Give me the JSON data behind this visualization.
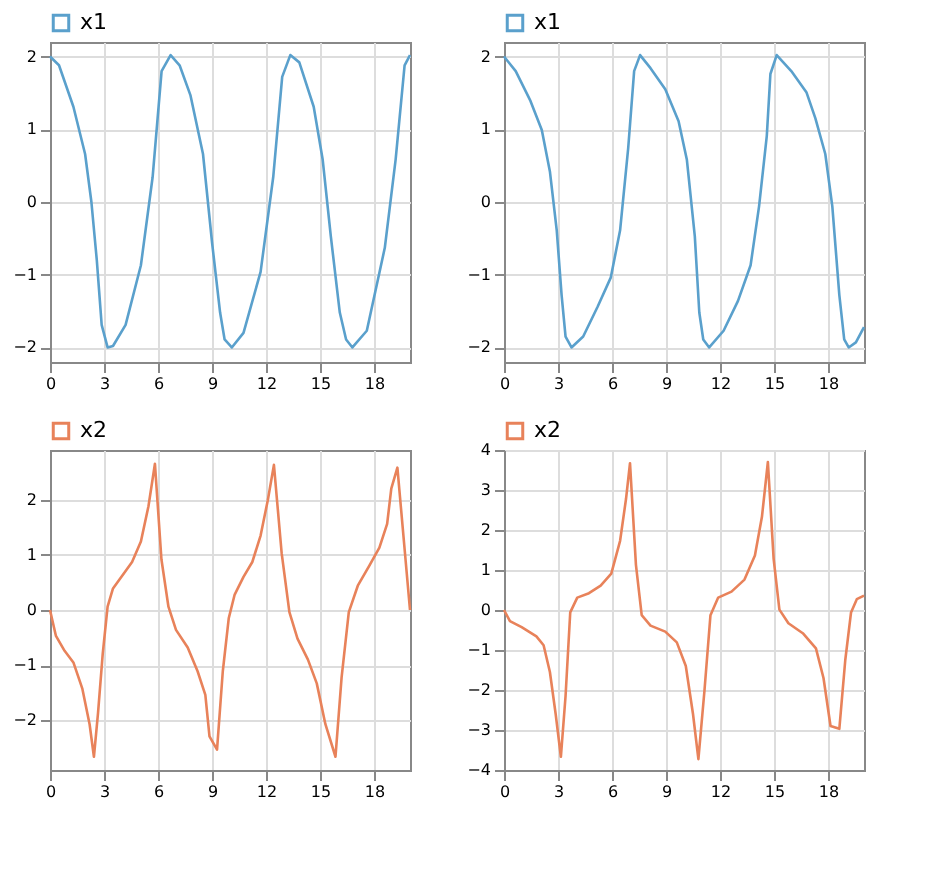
{
  "chart_data": [
    {
      "type": "line",
      "xlim": [
        0,
        20
      ],
      "xticks": [
        0,
        3,
        6,
        9,
        12,
        15,
        18
      ],
      "ylim": [
        -2.2,
        2.2
      ],
      "yticks": [
        -2,
        -1,
        0,
        1,
        2
      ],
      "grid": true,
      "legend": "top left",
      "marker": "none",
      "series": [
        {
          "name": "x1",
          "color": "#5aa0cc",
          "x": [
            0,
            0.5,
            1.3,
            1.95,
            2.3,
            2.6,
            2.87,
            3.2,
            3.5,
            4.2,
            5.05,
            5.7,
            6.2,
            6.7,
            7.2,
            7.8,
            8.5,
            9.0,
            9.45,
            9.7,
            10.1,
            10.75,
            11.7,
            12.4,
            12.9,
            13.35,
            13.85,
            14.65,
            15.15,
            15.6,
            16.1,
            16.45,
            16.8,
            17.6,
            18.6,
            19.2,
            19.7,
            20.0
          ],
          "values": [
            2,
            1.88,
            1.31,
            0.66,
            0,
            -0.8,
            -1.69,
            -2.0,
            -1.98,
            -1.69,
            -0.87,
            0.34,
            1.8,
            2.02,
            1.88,
            1.47,
            0.66,
            -0.55,
            -1.52,
            -1.89,
            -2.0,
            -1.8,
            -0.96,
            0.34,
            1.72,
            2.02,
            1.92,
            1.31,
            0.58,
            -0.47,
            -1.52,
            -1.89,
            -2.0,
            -1.77,
            -0.63,
            0.58,
            1.88,
            2.02
          ]
        }
      ]
    },
    {
      "type": "line",
      "xlim": [
        0,
        20
      ],
      "xticks": [
        0,
        3,
        6,
        9,
        12,
        15,
        18
      ],
      "ylim": [
        -2.2,
        2.2
      ],
      "yticks": [
        -2,
        -1,
        0,
        1,
        2
      ],
      "grid": true,
      "legend": "top left",
      "marker": "none",
      "series": [
        {
          "name": "x1",
          "color": "#5aa0cc",
          "x": [
            0,
            0.65,
            1.47,
            2.1,
            2.55,
            2.93,
            3.2,
            3.42,
            3.75,
            4.4,
            5.2,
            5.93,
            6.45,
            6.9,
            7.23,
            7.56,
            8.14,
            8.96,
            9.7,
            10.16,
            10.6,
            10.85,
            11.07,
            11.4,
            12.2,
            13.0,
            13.7,
            14.17,
            14.6,
            14.8,
            15.15,
            15.96,
            16.8,
            17.3,
            17.85,
            18.24,
            18.63,
            18.9,
            19.15,
            19.55,
            20.0
          ],
          "values": [
            2,
            1.8,
            1.39,
            0.99,
            0.42,
            -0.39,
            -1.28,
            -1.85,
            -2.0,
            -1.85,
            -1.44,
            -1.04,
            -0.39,
            0.74,
            1.8,
            2.02,
            1.84,
            1.55,
            1.11,
            0.58,
            -0.47,
            -1.52,
            -1.89,
            -2.0,
            -1.77,
            -1.36,
            -0.87,
            -0.06,
            0.91,
            1.76,
            2.02,
            1.8,
            1.51,
            1.15,
            0.66,
            -0.06,
            -1.28,
            -1.89,
            -2.0,
            -1.93,
            -1.72
          ]
        }
      ]
    },
    {
      "type": "line",
      "xlim": [
        0,
        20
      ],
      "xticks": [
        0,
        3,
        6,
        9,
        12,
        15,
        18
      ],
      "ylim": [
        -2.9,
        2.9
      ],
      "yticks": [
        -2,
        -1,
        0,
        1,
        2
      ],
      "grid": true,
      "legend": "top left",
      "marker": "none",
      "series": [
        {
          "name": "x2",
          "color": "#e8825a",
          "x": [
            0,
            0.33,
            0.81,
            1.3,
            1.8,
            2.2,
            2.44,
            2.67,
            2.93,
            3.2,
            3.5,
            4.07,
            4.56,
            5.05,
            5.47,
            5.83,
            6.19,
            6.58,
            7.0,
            7.65,
            8.2,
            8.63,
            8.86,
            9.28,
            9.6,
            9.93,
            10.26,
            10.75,
            11.24,
            11.7,
            12.1,
            12.44,
            12.87,
            13.3,
            13.75,
            14.33,
            14.82,
            15.3,
            15.86,
            16.2,
            16.6,
            17.1,
            17.75,
            18.3,
            18.73,
            18.96,
            19.3,
            20.0
          ],
          "values": [
            0,
            -0.47,
            -0.74,
            -0.95,
            -1.43,
            -2.07,
            -2.66,
            -1.86,
            -0.79,
            0.06,
            0.39,
            0.65,
            0.87,
            1.24,
            1.88,
            2.65,
            0.92,
            0.06,
            -0.36,
            -0.68,
            -1.11,
            -1.54,
            -2.29,
            -2.53,
            -1.11,
            -0.15,
            0.28,
            0.6,
            0.87,
            1.35,
            1.99,
            2.63,
            1.03,
            -0.04,
            -0.52,
            -0.9,
            -1.33,
            -2.07,
            -2.66,
            -1.22,
            -0.04,
            0.44,
            0.81,
            1.13,
            1.56,
            2.2,
            2.58,
            0
          ]
        }
      ]
    },
    {
      "type": "line",
      "xlim": [
        0,
        20
      ],
      "xticks": [
        0,
        3,
        6,
        9,
        12,
        15,
        18
      ],
      "ylim": [
        -4,
        4
      ],
      "yticks": [
        -4,
        -3,
        -2,
        -1,
        0,
        1,
        2,
        3,
        4
      ],
      "grid": true,
      "legend": "top left",
      "marker": "none",
      "series": [
        {
          "name": "x2",
          "color": "#e8825a",
          "x": [
            0,
            0.33,
            0.98,
            1.8,
            2.2,
            2.55,
            2.87,
            3.16,
            3.42,
            3.68,
            4.07,
            4.72,
            5.37,
            5.96,
            6.45,
            6.78,
            7.0,
            7.33,
            7.65,
            8.14,
            8.96,
            9.6,
            10.1,
            10.5,
            10.8,
            11.14,
            11.47,
            11.9,
            12.64,
            13.36,
            13.94,
            14.33,
            14.66,
            14.98,
            15.3,
            15.8,
            16.6,
            17.33,
            17.75,
            18.14,
            18.63,
            18.96,
            19.28,
            19.6,
            20.0
          ],
          "values": [
            0,
            -0.28,
            -0.43,
            -0.66,
            -0.88,
            -1.55,
            -2.6,
            -3.67,
            -2.15,
            -0.06,
            0.31,
            0.42,
            0.61,
            0.91,
            1.73,
            2.78,
            3.67,
            1.13,
            -0.13,
            -0.39,
            -0.54,
            -0.81,
            -1.4,
            -2.6,
            -3.73,
            -2.0,
            -0.13,
            0.31,
            0.46,
            0.76,
            1.36,
            2.33,
            3.7,
            1.28,
            0.01,
            -0.33,
            -0.58,
            -0.96,
            -1.7,
            -2.9,
            -2.97,
            -1.25,
            -0.06,
            0.27,
            0.36
          ]
        }
      ]
    }
  ]
}
